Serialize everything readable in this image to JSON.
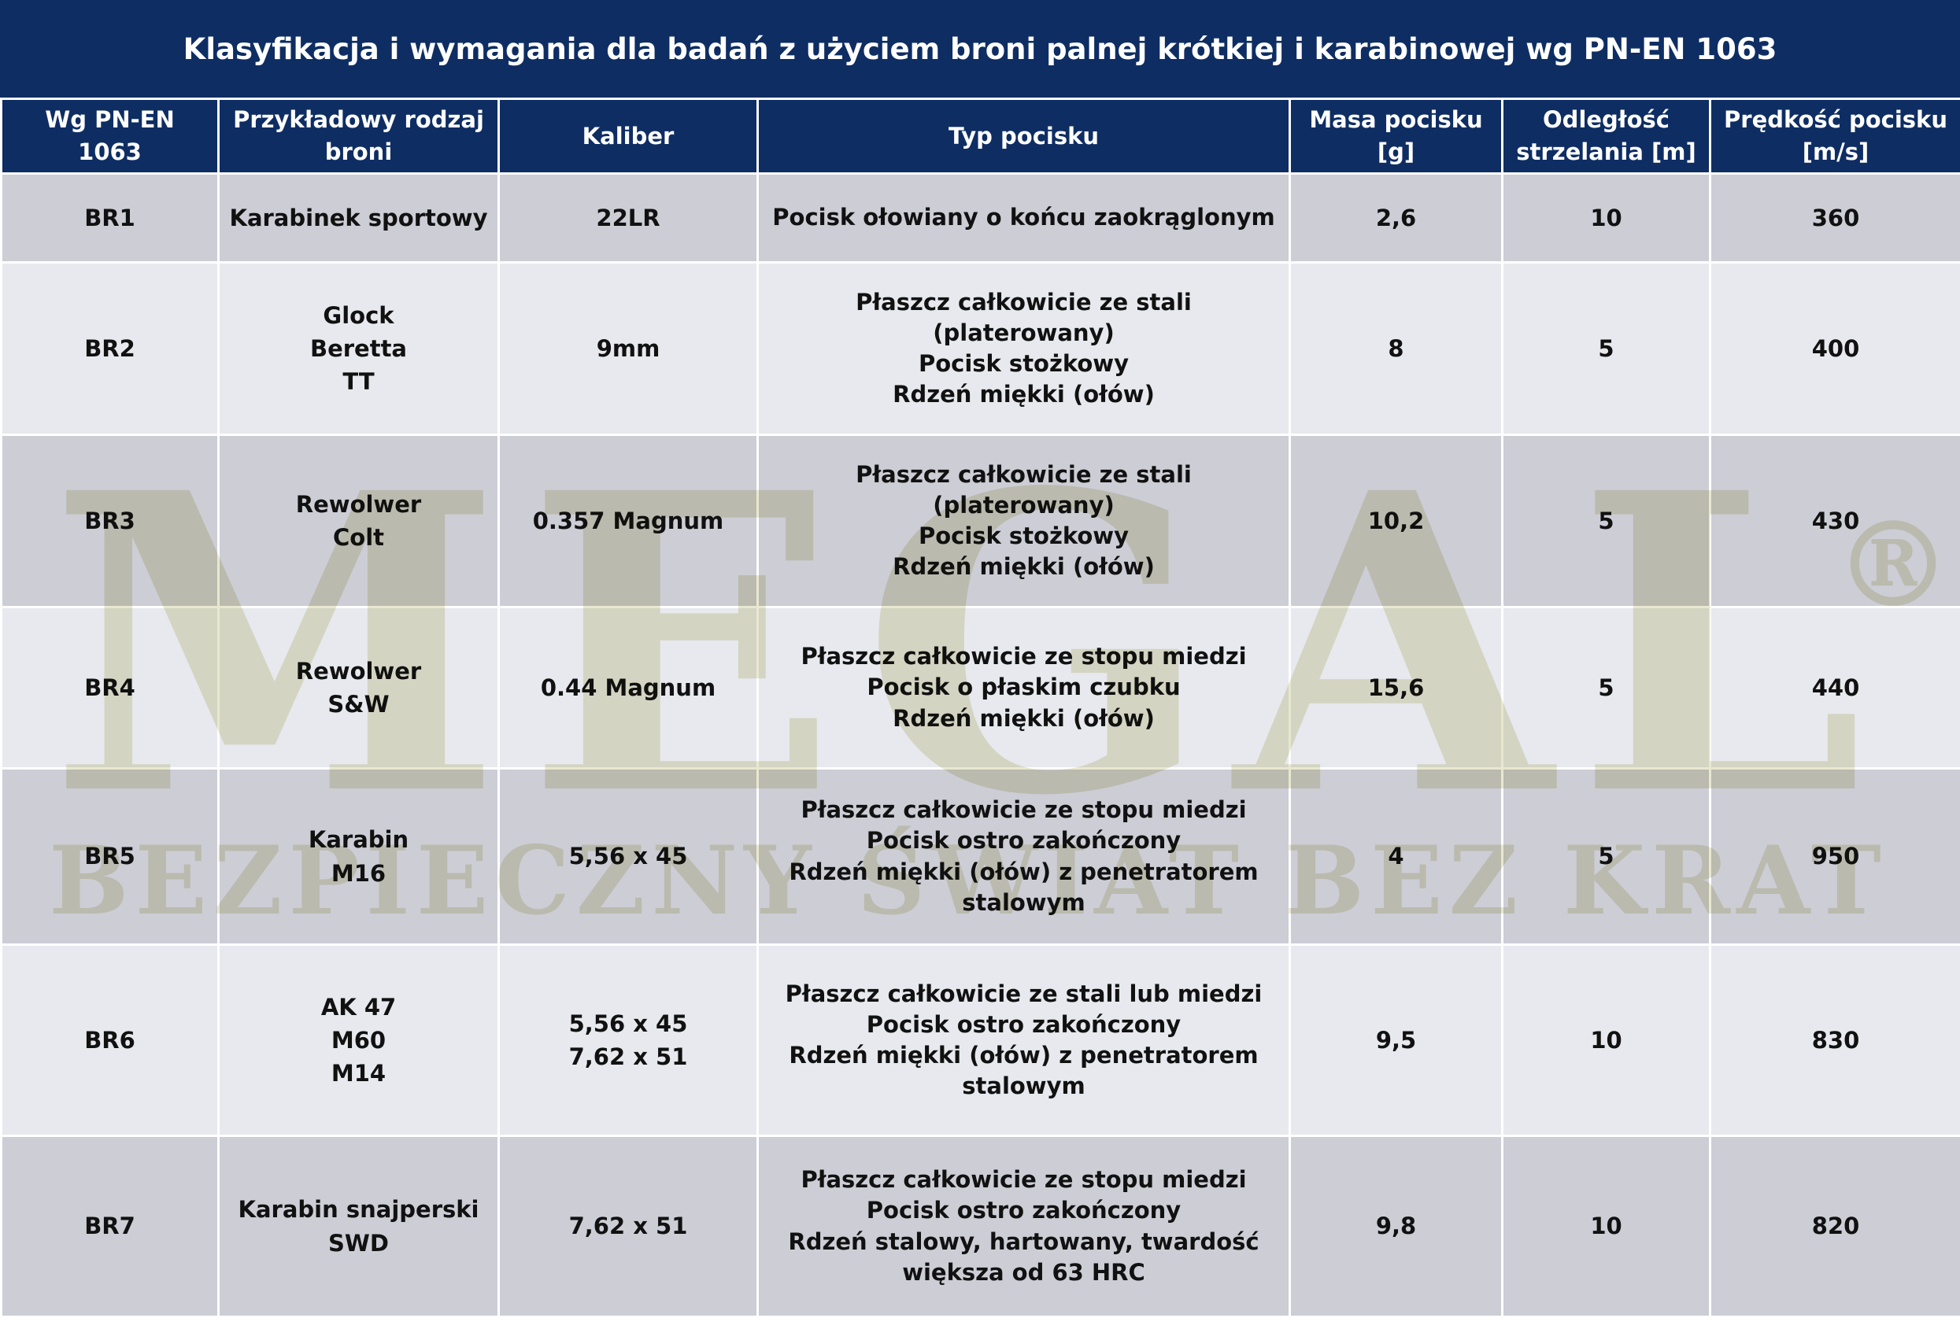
{
  "title": "Klasyfikacja i wymagania dla badań z użyciem broni palnej krótkiej i karabinowej wg PN-EN 1063",
  "table": {
    "header": [
      "Wg PN-EN 1063",
      "Przykładowy rodzaj broni",
      "Kaliber",
      "Typ pocisku",
      "Masa pocisku [g]",
      "Odległość strzelania [m]",
      "Prędkość pocisku [m/s]"
    ],
    "rows": [
      [
        [
          "BR1"
        ],
        [
          "Karabinek sportowy"
        ],
        [
          "22LR"
        ],
        [
          "Pocisk ołowiany o końcu zaokrąglonym"
        ],
        [
          "2,6"
        ],
        [
          "10"
        ],
        [
          "360"
        ]
      ],
      [
        [
          "BR2"
        ],
        [
          "Glock",
          "Beretta",
          "TT"
        ],
        [
          "9mm"
        ],
        [
          "Płaszcz całkowicie ze stali (platerowany)",
          "Pocisk stożkowy",
          "Rdzeń miękki (ołów)"
        ],
        [
          "8"
        ],
        [
          "5"
        ],
        [
          "400"
        ]
      ],
      [
        [
          "BR3"
        ],
        [
          "Rewolwer",
          "Colt"
        ],
        [
          "0.357 Magnum"
        ],
        [
          "Płaszcz całkowicie ze stali (platerowany)",
          "Pocisk stożkowy",
          "Rdzeń miękki (ołów)"
        ],
        [
          "10,2"
        ],
        [
          "5"
        ],
        [
          "430"
        ]
      ],
      [
        [
          "BR4"
        ],
        [
          "Rewolwer",
          "S&W"
        ],
        [
          "0.44 Magnum"
        ],
        [
          "Płaszcz całkowicie ze stopu miedzi",
          "Pocisk o płaskim czubku",
          "Rdzeń miękki (ołów)"
        ],
        [
          "15,6"
        ],
        [
          "5"
        ],
        [
          "440"
        ]
      ],
      [
        [
          "BR5"
        ],
        [
          "Karabin",
          "M16"
        ],
        [
          "5,56 x 45"
        ],
        [
          "Płaszcz całkowicie ze stopu miedzi",
          "Pocisk ostro zakończony",
          "Rdzeń miękki (ołów) z penetratorem stalowym"
        ],
        [
          "4"
        ],
        [
          "5"
        ],
        [
          "950"
        ]
      ],
      [
        [
          "BR6"
        ],
        [
          "AK 47",
          "M60",
          "M14"
        ],
        [
          "5,56 x 45",
          "7,62 x 51"
        ],
        [
          "Płaszcz całkowicie ze stali lub miedzi",
          "Pocisk ostro zakończony",
          "Rdzeń miękki (ołów) z penetratorem stalowym"
        ],
        [
          "9,5"
        ],
        [
          "10"
        ],
        [
          "830"
        ]
      ],
      [
        [
          "BR7"
        ],
        [
          "Karabin snajperski",
          "SWD"
        ],
        [
          "7,62 x 51"
        ],
        [
          "Płaszcz całkowicie ze stopu miedzi",
          "Pocisk ostro zakończony",
          "Rdzeń stalowy, hartowany, twardość większa od 63 HRC"
        ],
        [
          "9,8"
        ],
        [
          "10"
        ],
        [
          "820"
        ]
      ]
    ]
  },
  "watermark": {
    "logo": "MEGAL",
    "mark": "®",
    "tagline": "BEZPIECZNY ŚWIAT BEZ KRAT"
  }
}
